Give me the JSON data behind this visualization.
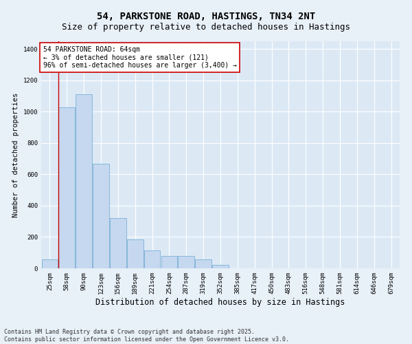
{
  "title": "54, PARKSTONE ROAD, HASTINGS, TN34 2NT",
  "subtitle": "Size of property relative to detached houses in Hastings",
  "xlabel": "Distribution of detached houses by size in Hastings",
  "ylabel": "Number of detached properties",
  "bar_color": "#c5d8f0",
  "bar_edge_color": "#7bafd4",
  "background_color": "#dce9f5",
  "fig_background_color": "#e8f0f8",
  "grid_color": "#ffffff",
  "categories": [
    "25sqm",
    "58sqm",
    "90sqm",
    "123sqm",
    "156sqm",
    "189sqm",
    "221sqm",
    "254sqm",
    "287sqm",
    "319sqm",
    "352sqm",
    "385sqm",
    "417sqm",
    "450sqm",
    "483sqm",
    "516sqm",
    "548sqm",
    "581sqm",
    "614sqm",
    "646sqm",
    "679sqm"
  ],
  "values": [
    55,
    1030,
    1110,
    670,
    320,
    185,
    115,
    80,
    80,
    55,
    20,
    0,
    0,
    0,
    0,
    0,
    0,
    0,
    0,
    0,
    0
  ],
  "ylim": [
    0,
    1450
  ],
  "yticks": [
    0,
    200,
    400,
    600,
    800,
    1000,
    1200,
    1400
  ],
  "vline_color": "#cc0000",
  "vline_pos": 0.52,
  "annotation_text": "54 PARKSTONE ROAD: 64sqm\n← 3% of detached houses are smaller (121)\n96% of semi-detached houses are larger (3,400) →",
  "annotation_box_color": "#ffffff",
  "annotation_box_edge": "#cc0000",
  "footer_text": "Contains HM Land Registry data © Crown copyright and database right 2025.\nContains public sector information licensed under the Open Government Licence v3.0.",
  "title_fontsize": 10,
  "subtitle_fontsize": 9,
  "xlabel_fontsize": 8.5,
  "ylabel_fontsize": 7.5,
  "tick_fontsize": 6.5,
  "annotation_fontsize": 7,
  "footer_fontsize": 6
}
